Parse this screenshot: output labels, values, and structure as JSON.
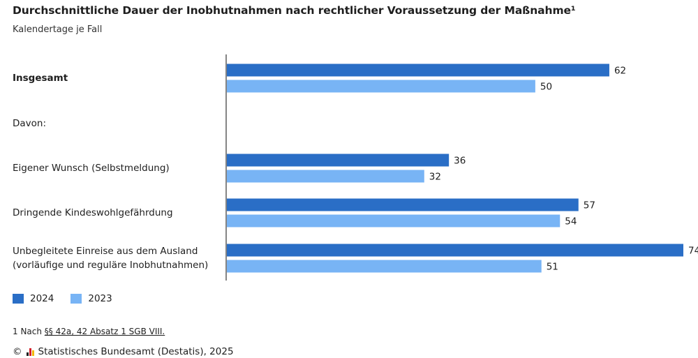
{
  "title": "Durchschnittliche Dauer der Inobhutnahmen nach rechtlicher Voraussetzung der Maßnahme¹",
  "subtitle": "Kalendertage je Fall",
  "colors": {
    "series_2024": "#2a6ec6",
    "series_2023": "#78b4f5",
    "axis": "#333333"
  },
  "legend": {
    "item_2024": "2024",
    "item_2023": "2023"
  },
  "footnote": {
    "prefix": "1 Nach ",
    "link": "§§ 42a, 42 Absatz 1 SGB VIII."
  },
  "source": {
    "copyright": "©",
    "text": "Statistisches Bundesamt (Destatis), 2025"
  },
  "chart_data": {
    "type": "bar",
    "orientation": "horizontal",
    "categories": [
      "Insgesamt",
      "Davon:",
      "Eigener Wunsch (Selbstmeldung)",
      "Dringende Kindeswohlgefährdung",
      "Unbegleitete Einreise aus dem Ausland (vorläufige und reguläre Inobhutnahmen)"
    ],
    "category_lines": [
      [
        "Insgesamt"
      ],
      [
        "Davon:"
      ],
      [
        "Eigener Wunsch (Selbstmeldung)"
      ],
      [
        "Dringende Kindeswohlgefährdung"
      ],
      [
        "Unbegleitete Einreise aus dem Ausland",
        "(vorläufige und reguläre Inobhutnahmen)"
      ]
    ],
    "series": [
      {
        "name": "2024",
        "values": [
          62,
          null,
          36,
          57,
          74
        ]
      },
      {
        "name": "2023",
        "values": [
          50,
          null,
          32,
          54,
          51
        ]
      }
    ],
    "xlim": [
      0,
      74
    ],
    "grid": false,
    "legend_position": "bottom-left"
  }
}
